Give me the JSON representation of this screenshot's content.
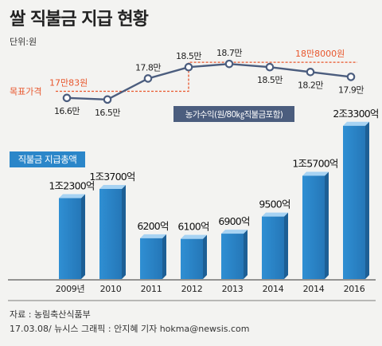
{
  "header": {
    "title": "쌀 직불금 지급 현황",
    "unit": "단위:원"
  },
  "chart_data": [
    {
      "type": "line",
      "series": [
        {
          "name": "농가수익(원/80㎏직불금포함)",
          "labels": [
            "16.6만",
            "16.5만",
            "17.8만",
            "18.5만",
            "18.7만",
            "18.5만",
            "18.2만",
            "17.9만"
          ],
          "values": [
            166000,
            165000,
            178000,
            185000,
            187000,
            185000,
            182000,
            179000
          ],
          "color": "#4b5d7e"
        }
      ],
      "target": {
        "label": "목표가격",
        "before_label": "17만83원",
        "before_value": 170083,
        "after_label": "18만8000원",
        "after_value": 188000,
        "color": "#e8562c"
      },
      "ylim": [
        160000,
        192000
      ]
    },
    {
      "type": "bar",
      "legend": "직불금 지급총액",
      "categories": [
        "2009년",
        "2010",
        "2011",
        "2012",
        "2013",
        "2014",
        "2014",
        "2016"
      ],
      "labels": [
        "1조2300억",
        "1조3700억",
        "6200억",
        "6100억",
        "6900억",
        "9500억",
        "1조5700억",
        "2조3300억"
      ],
      "values": [
        12300,
        13700,
        6200,
        6100,
        6900,
        9500,
        15700,
        23300
      ],
      "color": "#2b86c9",
      "ylim": [
        0,
        24000
      ]
    }
  ],
  "footer": {
    "source": "자료 : 농림축산식품부",
    "credit": "17.03.08/ 뉴시스 그래픽 : 안지혜 기자 hokma@newsis.com"
  }
}
